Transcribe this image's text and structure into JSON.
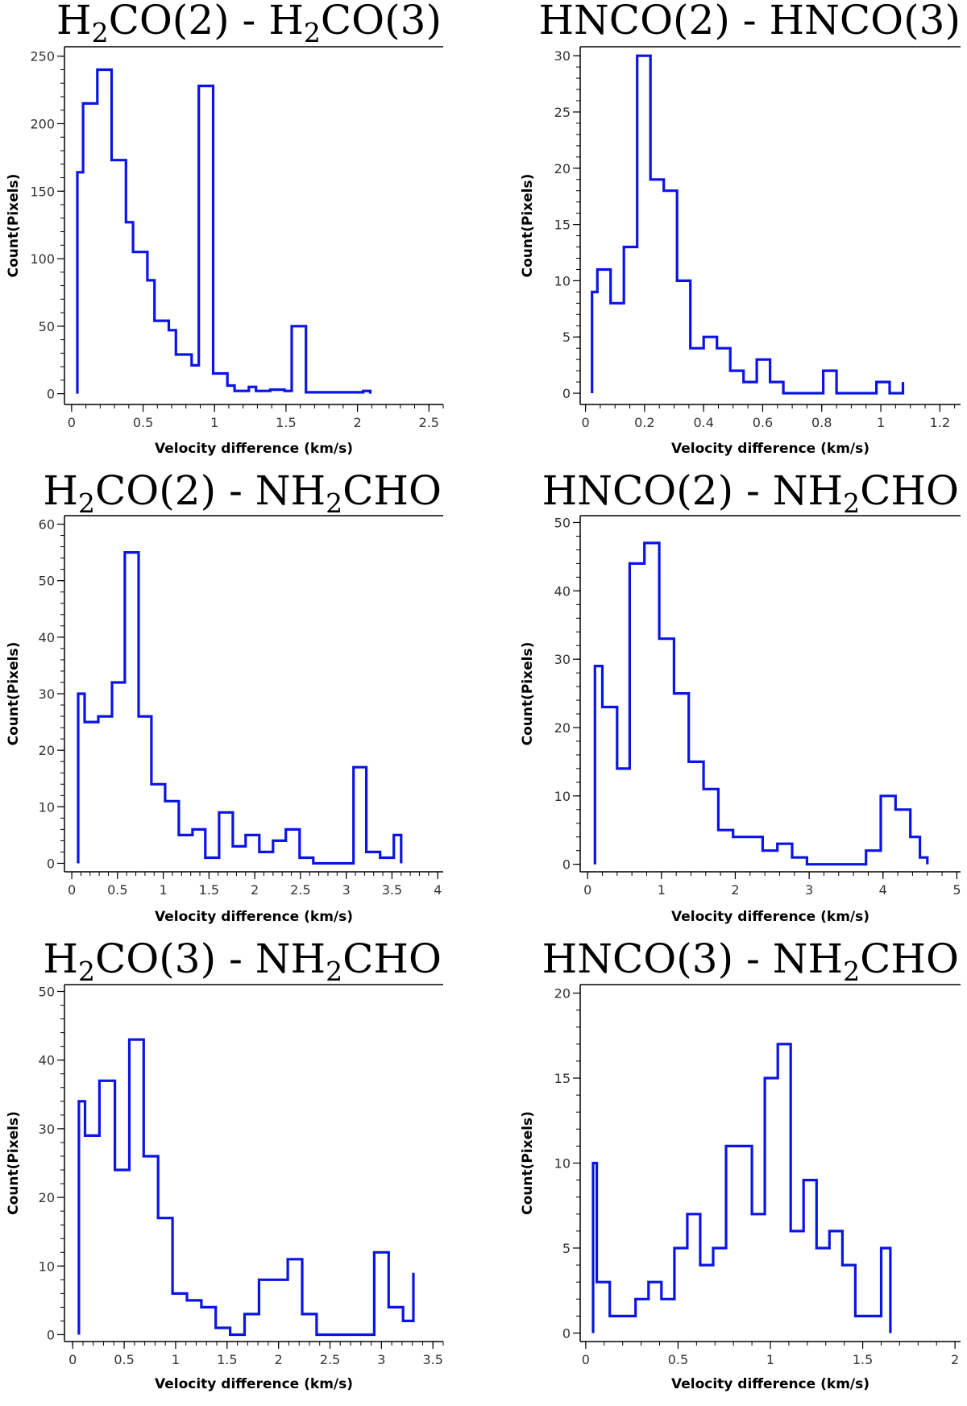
{
  "chart_data": [
    {
      "type": "step",
      "title_parts": [
        [
          "H",
          "n"
        ],
        [
          "2",
          "s"
        ],
        [
          "CO(2) - H",
          "n"
        ],
        [
          "2",
          "s"
        ],
        [
          "CO(3)",
          "n"
        ]
      ],
      "xlabel": "Velocity difference (km/s)",
      "ylabel": "Count(Pixels)",
      "xlim": [
        -0.05,
        2.6
      ],
      "ylim": [
        -8,
        257
      ],
      "xticks": [
        0,
        0.5,
        1,
        1.5,
        2,
        2.5
      ],
      "xtick_labels": [
        "0",
        "0.5",
        "1",
        "1.5",
        "2",
        "2.5"
      ],
      "xminor": 0.1,
      "yticks": [
        0,
        50,
        100,
        150,
        200,
        250
      ],
      "ytick_labels": [
        "0",
        "50",
        "100",
        "150",
        "200",
        "250"
      ],
      "yminor": 10,
      "edges": [
        0.04,
        0.08,
        0.13,
        0.18,
        0.23,
        0.28,
        0.33,
        0.38,
        0.43,
        0.48,
        0.53,
        0.58,
        0.63,
        0.68,
        0.73,
        0.78,
        0.84,
        0.89,
        0.94,
        0.99,
        1.04,
        1.09,
        1.14,
        1.19,
        1.24,
        1.29,
        1.34,
        1.39,
        1.44,
        1.49,
        1.54,
        1.59,
        1.64,
        1.69,
        1.74,
        1.79,
        1.84,
        1.89,
        1.94,
        1.99,
        2.04,
        2.09
      ],
      "counts": [
        164,
        215,
        215,
        240,
        240,
        173,
        173,
        127,
        105,
        105,
        84,
        54,
        54,
        47,
        29,
        29,
        21,
        228,
        228,
        15,
        15,
        6,
        2,
        2,
        5,
        2,
        2,
        3,
        3,
        2,
        50,
        50,
        1,
        1,
        1,
        1,
        1,
        1,
        1,
        1,
        2
      ],
      "color": "#0a14e6"
    },
    {
      "type": "step",
      "title_parts": [
        [
          "HNCO(2) - HNCO(3)",
          "n"
        ]
      ],
      "xlabel": "Velocity difference (km/s)",
      "ylabel": "Count(Pixels)",
      "xlim": [
        -0.018,
        1.27
      ],
      "ylim": [
        -1,
        30.8
      ],
      "xticks": [
        0,
        0.2,
        0.4,
        0.6,
        0.8,
        1,
        1.2
      ],
      "xtick_labels": [
        "0",
        "0.2",
        "0.4",
        "0.6",
        "0.8",
        "1",
        "1.2"
      ],
      "xminor": 0.05,
      "yticks": [
        0,
        5,
        10,
        15,
        20,
        25,
        30
      ],
      "ytick_labels": [
        "0",
        "5",
        "10",
        "15",
        "20",
        "25",
        "30"
      ],
      "yminor": 1,
      "edges": [
        0.022,
        0.04,
        0.085,
        0.13,
        0.175,
        0.22,
        0.265,
        0.31,
        0.355,
        0.4,
        0.445,
        0.49,
        0.535,
        0.58,
        0.625,
        0.67,
        0.715,
        0.76,
        0.805,
        0.85,
        0.895,
        0.94,
        0.985,
        1.03,
        1.075
      ],
      "counts": [
        9,
        11,
        8,
        13,
        30,
        19,
        18,
        10,
        4,
        5,
        4,
        2,
        1,
        3,
        1,
        0,
        0,
        0,
        2,
        0,
        0,
        0,
        1,
        0,
        1
      ],
      "color": "#0a14e6"
    },
    {
      "type": "step",
      "title_parts": [
        [
          "H",
          "n"
        ],
        [
          "2",
          "s"
        ],
        [
          "CO(2) - NH",
          "n"
        ],
        [
          "2",
          "s"
        ],
        [
          "CHO",
          "n"
        ]
      ],
      "xlabel": "Velocity difference (km/s)",
      "ylabel": "Count(Pixels)",
      "xlim": [
        -0.08,
        4.06
      ],
      "ylim": [
        -1.5,
        61.5
      ],
      "xticks": [
        0,
        0.5,
        1,
        1.5,
        2,
        2.5,
        3,
        3.5,
        4
      ],
      "xtick_labels": [
        "0",
        "0.5",
        "1",
        "1.5",
        "2",
        "2.5",
        "3",
        "3.5",
        "4"
      ],
      "xminor": 0.1,
      "yticks": [
        0,
        10,
        20,
        30,
        40,
        50,
        60
      ],
      "ytick_labels": [
        "0",
        "10",
        "20",
        "30",
        "40",
        "50",
        "60"
      ],
      "yminor": 2,
      "edges": [
        0.07,
        0.14,
        0.29,
        0.44,
        0.58,
        0.73,
        0.87,
        1.02,
        1.17,
        1.32,
        1.46,
        1.61,
        1.76,
        1.9,
        2.05,
        2.2,
        2.34,
        2.49,
        2.64,
        2.78,
        2.93,
        3.08,
        3.22,
        3.37,
        3.52,
        3.6
      ],
      "counts": [
        30,
        25,
        26,
        32,
        55,
        26,
        14,
        11,
        5,
        6,
        1,
        9,
        3,
        5,
        2,
        4,
        6,
        1,
        0,
        0,
        0,
        17,
        2,
        1,
        5
      ],
      "color": "#0a14e6"
    },
    {
      "type": "step",
      "title_parts": [
        [
          "HNCO(2) - NH",
          "n"
        ],
        [
          "2",
          "s"
        ],
        [
          "CHO",
          "n"
        ]
      ],
      "xlabel": "Velocity difference (km/s)",
      "ylabel": "Count(Pixels)",
      "xlim": [
        -0.1,
        5.05
      ],
      "ylim": [
        -1.1,
        51
      ],
      "xticks": [
        0,
        1,
        2,
        3,
        4,
        5
      ],
      "xtick_labels": [
        "0",
        "1",
        "2",
        "3",
        "4",
        "5"
      ],
      "xminor": 0.2,
      "yticks": [
        0,
        10,
        20,
        30,
        40,
        50
      ],
      "ytick_labels": [
        "0",
        "10",
        "20",
        "30",
        "40",
        "50"
      ],
      "yminor": 2,
      "edges": [
        0.1,
        0.2,
        0.4,
        0.57,
        0.77,
        0.97,
        1.17,
        1.37,
        1.57,
        1.77,
        1.97,
        2.17,
        2.37,
        2.57,
        2.77,
        2.97,
        3.17,
        3.37,
        3.57,
        3.77,
        3.97,
        4.17,
        4.37,
        4.5,
        4.6
      ],
      "counts": [
        29,
        23,
        14,
        44,
        47,
        33,
        25,
        15,
        11,
        5,
        4,
        4,
        2,
        3,
        1,
        0,
        0,
        0,
        0,
        2,
        10,
        8,
        4,
        1
      ],
      "color": "#0a14e6"
    },
    {
      "type": "step",
      "title_parts": [
        [
          "H",
          "n"
        ],
        [
          "2",
          "s"
        ],
        [
          "CO(3) - NH",
          "n"
        ],
        [
          "2",
          "s"
        ],
        [
          "CHO",
          "n"
        ]
      ],
      "xlabel": "Velocity difference (km/s)",
      "ylabel": "Count(Pixels)",
      "xlim": [
        -0.08,
        3.6
      ],
      "ylim": [
        -1,
        51
      ],
      "xticks": [
        0,
        0.5,
        1,
        1.5,
        2,
        2.5,
        3,
        3.5
      ],
      "xtick_labels": [
        "0",
        "0.5",
        "1",
        "1.5",
        "2",
        "2.5",
        "3",
        "3.5"
      ],
      "xminor": 0.1,
      "yticks": [
        0,
        10,
        20,
        30,
        40,
        50
      ],
      "ytick_labels": [
        "0",
        "10",
        "20",
        "30",
        "40",
        "50"
      ],
      "yminor": 2,
      "edges": [
        0.06,
        0.12,
        0.26,
        0.41,
        0.55,
        0.69,
        0.83,
        0.97,
        1.11,
        1.25,
        1.39,
        1.53,
        1.67,
        1.81,
        1.95,
        2.09,
        2.23,
        2.37,
        2.51,
        2.65,
        2.79,
        2.93,
        3.07,
        3.21,
        3.31
      ],
      "counts": [
        34,
        29,
        37,
        24,
        43,
        26,
        17,
        6,
        5,
        4,
        1,
        0,
        3,
        8,
        8,
        11,
        3,
        0,
        0,
        0,
        0,
        12,
        4,
        2,
        9
      ],
      "color": "#0a14e6"
    },
    {
      "type": "step",
      "title_parts": [
        [
          "HNCO(3) - NH",
          "n"
        ],
        [
          "2",
          "s"
        ],
        [
          "CHO",
          "n"
        ]
      ],
      "xlabel": "Velocity difference (km/s)",
      "ylabel": "Count(Pixels)",
      "xlim": [
        -0.03,
        2.03
      ],
      "ylim": [
        -0.5,
        20.5
      ],
      "xticks": [
        0,
        0.5,
        1,
        1.5,
        2
      ],
      "xtick_labels": [
        "0",
        "0.5",
        "1",
        "1.5",
        "2"
      ],
      "xminor": 0.1,
      "yticks": [
        0,
        5,
        10,
        15,
        20
      ],
      "ytick_labels": [
        "0",
        "5",
        "10",
        "15",
        "20"
      ],
      "yminor": 1,
      "edges": [
        0.04,
        0.06,
        0.13,
        0.2,
        0.27,
        0.34,
        0.41,
        0.48,
        0.55,
        0.62,
        0.69,
        0.76,
        0.83,
        0.9,
        0.97,
        1.04,
        1.11,
        1.18,
        1.25,
        1.32,
        1.39,
        1.46,
        1.53,
        1.6,
        1.65
      ],
      "counts": [
        10,
        3,
        1,
        1,
        2,
        3,
        2,
        5,
        7,
        4,
        5,
        11,
        11,
        7,
        15,
        17,
        6,
        9,
        5,
        6,
        4,
        1,
        1,
        5
      ],
      "color": "#0a14e6"
    }
  ]
}
